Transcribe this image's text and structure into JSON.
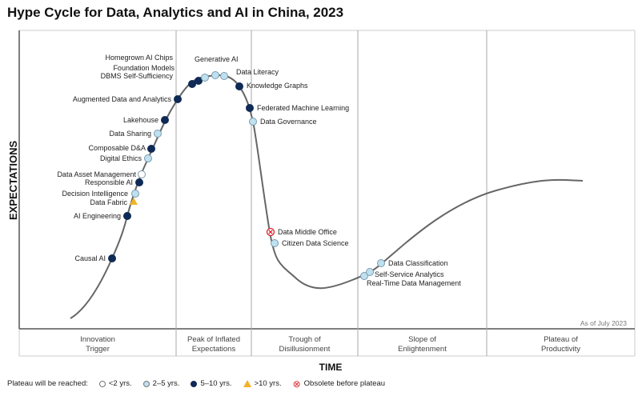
{
  "title": "Hype Cycle for Data, Analytics and AI in China, 2023",
  "y_axis_label": "EXPECTATIONS",
  "x_axis_label": "TIME",
  "as_of": "As of July 2023",
  "phases": [
    {
      "line1": "Innovation",
      "line2": "Trigger"
    },
    {
      "line1": "Peak of Inflated",
      "line2": "Expectations"
    },
    {
      "line1": "Trough of",
      "line2": "Disillusionment"
    },
    {
      "line1": "Slope of",
      "line2": "Enlightenment"
    },
    {
      "line1": "Plateau of",
      "line2": "Productivity"
    }
  ],
  "legend": {
    "prefix": "Plateau will be reached:",
    "items": [
      {
        "key": "lt2",
        "label": "<2 yrs.",
        "color": "#ffffff"
      },
      {
        "key": "2to5",
        "label": "2–5 yrs.",
        "color": "#bfe0ef"
      },
      {
        "key": "5to10",
        "label": "5–10 yrs.",
        "color": "#0f2a55"
      },
      {
        "key": "gt10",
        "label": ">10 yrs.",
        "color": "#f0b429"
      },
      {
        "key": "obsolete",
        "label": "Obsolete before plateau",
        "color": "#d9262c"
      }
    ]
  },
  "technologies": [
    {
      "name": "Causal AI",
      "plateau": "5to10"
    },
    {
      "name": "AI Engineering",
      "plateau": "5to10"
    },
    {
      "name": "Data Fabric",
      "plateau": "gt10"
    },
    {
      "name": "Decision Intelligence",
      "plateau": "2to5"
    },
    {
      "name": "Responsible AI",
      "plateau": "5to10"
    },
    {
      "name": "Data Asset Management",
      "plateau": "lt2"
    },
    {
      "name": "Digital Ethics",
      "plateau": "2to5"
    },
    {
      "name": "Composable D&A",
      "plateau": "5to10"
    },
    {
      "name": "Data Sharing",
      "plateau": "2to5"
    },
    {
      "name": "Lakehouse",
      "plateau": "5to10"
    },
    {
      "name": "Augmented Data and Analytics",
      "plateau": "5to10"
    },
    {
      "name": "DBMS Self-Sufficiency",
      "plateau": "5to10"
    },
    {
      "name": "Foundation Models",
      "plateau": "5to10"
    },
    {
      "name": "Homegrown AI Chips",
      "plateau": "2to5"
    },
    {
      "name": "Generative AI",
      "plateau": "2to5"
    },
    {
      "name": "Data Literacy",
      "plateau": "2to5"
    },
    {
      "name": "Knowledge Graphs",
      "plateau": "5to10"
    },
    {
      "name": "Federated Machine Learning",
      "plateau": "5to10"
    },
    {
      "name": "Data Governance",
      "plateau": "2to5"
    },
    {
      "name": "Data Middle Office",
      "plateau": "obsolete"
    },
    {
      "name": "Citizen Data Science",
      "plateau": "2to5"
    },
    {
      "name": "Real-Time Data Management",
      "plateau": "2to5"
    },
    {
      "name": "Self-Service Analytics",
      "plateau": "2to5"
    },
    {
      "name": "Data Classification",
      "plateau": "2to5"
    }
  ]
}
